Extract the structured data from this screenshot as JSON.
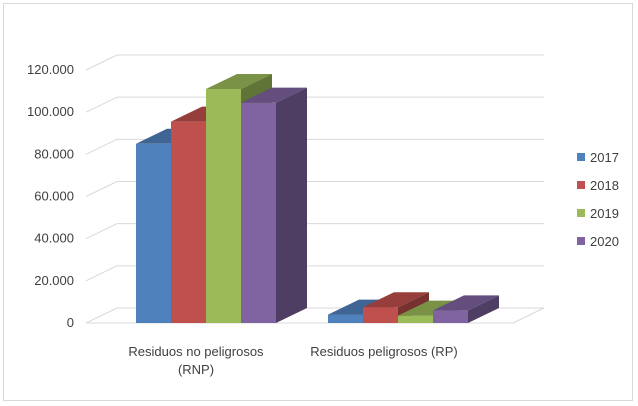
{
  "chart_data": {
    "type": "bar",
    "title": "",
    "xlabel": "",
    "ylabel": "",
    "categories": [
      [
        "Residuos no peligrosos",
        "(RNP)"
      ],
      [
        "Residuos peligrosos (RP)"
      ]
    ],
    "series": [
      {
        "name": "2017",
        "color": "#4f81bd",
        "values": [
          85000,
          4000
        ]
      },
      {
        "name": "2018",
        "color": "#c0504d",
        "values": [
          95500,
          7500
        ]
      },
      {
        "name": "2019",
        "color": "#9bbb59",
        "values": [
          111000,
          3500
        ]
      },
      {
        "name": "2020",
        "color": "#8064a2",
        "values": [
          104500,
          6000
        ]
      }
    ],
    "ylim": [
      0,
      120000
    ],
    "yticks": [
      0,
      20000,
      40000,
      60000,
      80000,
      100000,
      120000
    ],
    "ytick_labels": [
      "0",
      "20.000",
      "40.000",
      "60.000",
      "80.000",
      "100.000",
      "120.000"
    ],
    "grid": true,
    "legend_position": "right",
    "style": "3d-clustered-column",
    "gridline_color": "#d9d9d9"
  }
}
